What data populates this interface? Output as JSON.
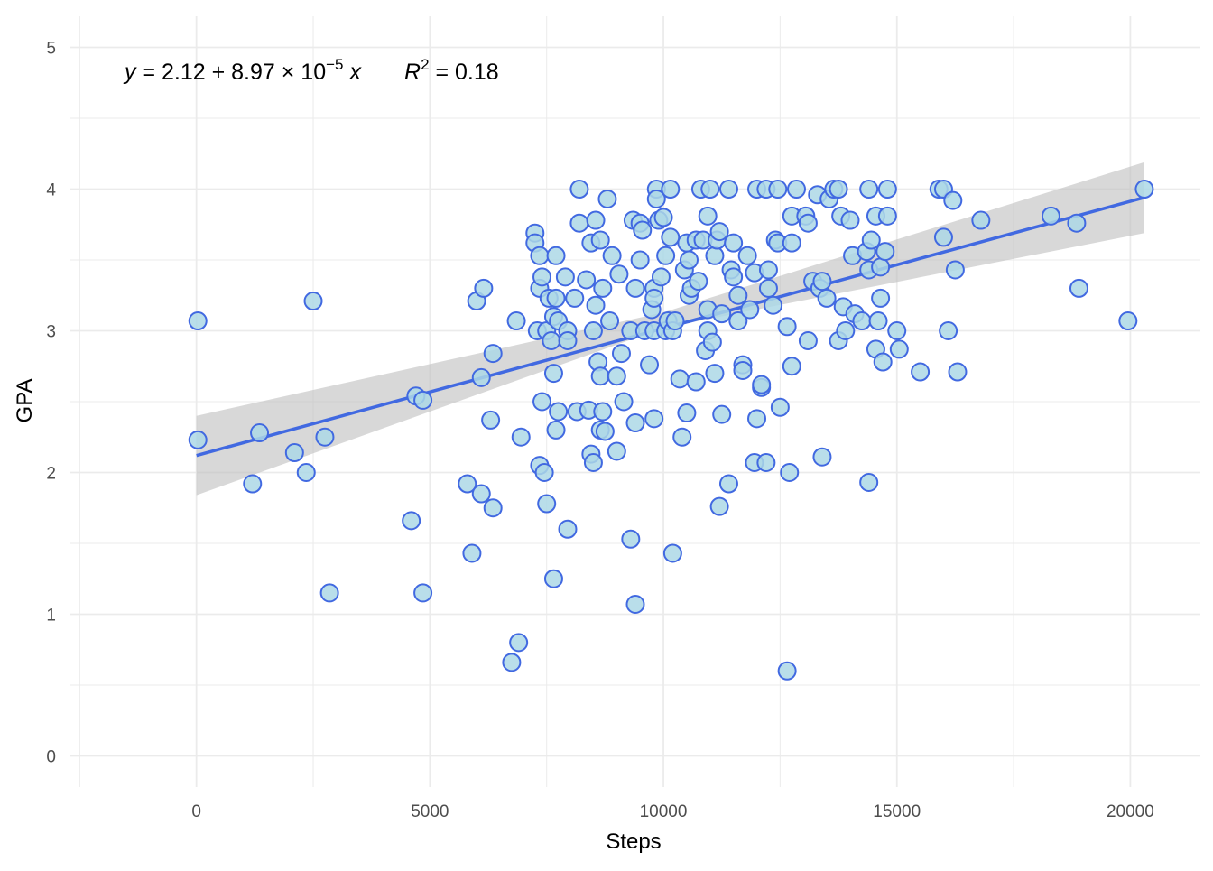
{
  "chart_data": {
    "type": "scatter",
    "xlabel": "Steps",
    "ylabel": "GPA",
    "xlim": [
      -2700,
      21500
    ],
    "ylim": [
      -0.22,
      5.22
    ],
    "x_ticks": [
      0,
      5000,
      10000,
      15000,
      20000
    ],
    "y_ticks": [
      0,
      1,
      2,
      3,
      4,
      5
    ],
    "x_tick_labels": [
      "0",
      "5000",
      "10000",
      "15000",
      "20000"
    ],
    "y_tick_labels": [
      "0",
      "1",
      "2",
      "3",
      "4",
      "5"
    ],
    "grid": true,
    "theme": "minimal",
    "annotation": {
      "y_var": "y",
      "eq_mid": " = 2.12 + 8.97 × 10",
      "exponent": "−5",
      "x_var": " x",
      "r_var": "R",
      "r_exp": "2",
      "r_val": " = 0.18"
    },
    "regression": {
      "intercept": 2.12,
      "slope": 8.97e-05,
      "x_range": [
        0,
        20300
      ],
      "ci_lower": [
        [
          0,
          1.84
        ],
        [
          10000,
          3.02
        ],
        [
          20300,
          3.69
        ]
      ],
      "ci_upper": [
        [
          0,
          2.4
        ],
        [
          10000,
          3.13
        ],
        [
          20300,
          4.19
        ]
      ]
    },
    "colors": {
      "point_fill": "#add8e6",
      "point_stroke": "#4169e1",
      "line": "#4169e1",
      "ci_band": "#bebebe",
      "grid": "#ebebeb"
    },
    "points": [
      [
        30,
        3.07
      ],
      [
        30,
        2.23
      ],
      [
        1200,
        1.92
      ],
      [
        1350,
        2.28
      ],
      [
        2100,
        2.14
      ],
      [
        2350,
        2.0
      ],
      [
        2500,
        3.21
      ],
      [
        2750,
        2.25
      ],
      [
        2850,
        1.15
      ],
      [
        4600,
        1.66
      ],
      [
        4700,
        2.54
      ],
      [
        4850,
        2.51
      ],
      [
        4850,
        1.15
      ],
      [
        5800,
        1.92
      ],
      [
        5900,
        1.43
      ],
      [
        6000,
        3.21
      ],
      [
        6100,
        2.67
      ],
      [
        6100,
        1.85
      ],
      [
        6150,
        3.3
      ],
      [
        6300,
        2.37
      ],
      [
        6350,
        2.84
      ],
      [
        6350,
        1.75
      ],
      [
        6750,
        0.66
      ],
      [
        6850,
        3.07
      ],
      [
        6900,
        0.8
      ],
      [
        6950,
        2.25
      ],
      [
        7250,
        3.69
      ],
      [
        7250,
        3.62
      ],
      [
        7300,
        3.0
      ],
      [
        7350,
        3.53
      ],
      [
        7350,
        3.3
      ],
      [
        7350,
        2.05
      ],
      [
        7400,
        3.38
      ],
      [
        7400,
        2.5
      ],
      [
        7450,
        2.0
      ],
      [
        7500,
        3.0
      ],
      [
        7500,
        1.78
      ],
      [
        7550,
        3.23
      ],
      [
        7600,
        2.93
      ],
      [
        7650,
        3.1
      ],
      [
        7650,
        2.7
      ],
      [
        7650,
        1.25
      ],
      [
        7700,
        3.53
      ],
      [
        7700,
        3.23
      ],
      [
        7700,
        2.3
      ],
      [
        7750,
        3.07
      ],
      [
        7750,
        2.43
      ],
      [
        7900,
        3.38
      ],
      [
        7950,
        3.0
      ],
      [
        7950,
        2.93
      ],
      [
        7950,
        1.6
      ],
      [
        8100,
        3.23
      ],
      [
        8150,
        2.43
      ],
      [
        8200,
        4.0
      ],
      [
        8200,
        3.76
      ],
      [
        8350,
        3.36
      ],
      [
        8400,
        2.44
      ],
      [
        8450,
        3.62
      ],
      [
        8450,
        2.13
      ],
      [
        8500,
        3.0
      ],
      [
        8500,
        2.07
      ],
      [
        8550,
        3.78
      ],
      [
        8550,
        3.18
      ],
      [
        8600,
        2.78
      ],
      [
        8650,
        3.64
      ],
      [
        8650,
        2.68
      ],
      [
        8650,
        2.3
      ],
      [
        8700,
        3.3
      ],
      [
        8700,
        2.43
      ],
      [
        8750,
        2.29
      ],
      [
        8800,
        3.93
      ],
      [
        8850,
        3.07
      ],
      [
        8900,
        3.53
      ],
      [
        9000,
        2.68
      ],
      [
        9000,
        2.15
      ],
      [
        9050,
        3.4
      ],
      [
        9100,
        2.84
      ],
      [
        9150,
        2.5
      ],
      [
        9300,
        3.0
      ],
      [
        9300,
        1.53
      ],
      [
        9350,
        3.78
      ],
      [
        9400,
        3.3
      ],
      [
        9400,
        2.35
      ],
      [
        9400,
        1.07
      ],
      [
        9500,
        3.76
      ],
      [
        9500,
        3.5
      ],
      [
        9550,
        3.71
      ],
      [
        9600,
        3.0
      ],
      [
        9700,
        2.76
      ],
      [
        9750,
        3.15
      ],
      [
        9800,
        3.3
      ],
      [
        9800,
        3.23
      ],
      [
        9800,
        3.0
      ],
      [
        9800,
        2.38
      ],
      [
        9850,
        4.0
      ],
      [
        9850,
        3.93
      ],
      [
        9900,
        3.78
      ],
      [
        9950,
        3.38
      ],
      [
        10000,
        3.8
      ],
      [
        10050,
        3.53
      ],
      [
        10050,
        3.0
      ],
      [
        10100,
        3.07
      ],
      [
        10150,
        4.0
      ],
      [
        10150,
        3.66
      ],
      [
        10200,
        3.0
      ],
      [
        10250,
        3.07
      ],
      [
        10200,
        1.43
      ],
      [
        10350,
        2.66
      ],
      [
        10400,
        2.25
      ],
      [
        10450,
        3.43
      ],
      [
        10500,
        3.62
      ],
      [
        10500,
        2.42
      ],
      [
        10550,
        3.5
      ],
      [
        10550,
        3.25
      ],
      [
        10600,
        3.3
      ],
      [
        10700,
        3.64
      ],
      [
        10700,
        2.64
      ],
      [
        10750,
        3.35
      ],
      [
        10800,
        4.0
      ],
      [
        10850,
        3.64
      ],
      [
        10900,
        2.86
      ],
      [
        10950,
        3.81
      ],
      [
        10950,
        3.15
      ],
      [
        10950,
        3.0
      ],
      [
        11000,
        4.0
      ],
      [
        11050,
        2.92
      ],
      [
        11100,
        3.53
      ],
      [
        11100,
        2.7
      ],
      [
        11150,
        3.64
      ],
      [
        11200,
        3.7
      ],
      [
        11200,
        1.76
      ],
      [
        11250,
        3.12
      ],
      [
        11250,
        2.41
      ],
      [
        11400,
        4.0
      ],
      [
        11400,
        1.92
      ],
      [
        11450,
        3.43
      ],
      [
        11500,
        3.62
      ],
      [
        11500,
        3.38
      ],
      [
        11600,
        3.25
      ],
      [
        11600,
        3.07
      ],
      [
        11700,
        2.76
      ],
      [
        11700,
        2.72
      ],
      [
        11800,
        3.53
      ],
      [
        11850,
        3.15
      ],
      [
        11950,
        3.41
      ],
      [
        11950,
        2.07
      ],
      [
        12000,
        4.0
      ],
      [
        12000,
        2.38
      ],
      [
        12100,
        2.6
      ],
      [
        12100,
        2.62
      ],
      [
        12200,
        4.0
      ],
      [
        12200,
        2.07
      ],
      [
        12250,
        3.43
      ],
      [
        12250,
        3.3
      ],
      [
        12350,
        3.18
      ],
      [
        12400,
        3.64
      ],
      [
        12450,
        4.0
      ],
      [
        12450,
        3.62
      ],
      [
        12500,
        2.46
      ],
      [
        12650,
        3.03
      ],
      [
        12650,
        0.6
      ],
      [
        12700,
        2.0
      ],
      [
        12750,
        3.81
      ],
      [
        12750,
        3.62
      ],
      [
        12750,
        2.75
      ],
      [
        12850,
        4.0
      ],
      [
        13050,
        3.81
      ],
      [
        13100,
        3.76
      ],
      [
        13100,
        2.93
      ],
      [
        13200,
        3.35
      ],
      [
        13300,
        3.96
      ],
      [
        13350,
        3.3
      ],
      [
        13400,
        3.35
      ],
      [
        13400,
        2.11
      ],
      [
        13500,
        3.23
      ],
      [
        13550,
        3.93
      ],
      [
        13650,
        4.0
      ],
      [
        13750,
        4.0
      ],
      [
        13750,
        2.93
      ],
      [
        13800,
        3.81
      ],
      [
        13850,
        3.17
      ],
      [
        13900,
        3.0
      ],
      [
        14000,
        3.78
      ],
      [
        14050,
        3.53
      ],
      [
        14100,
        3.12
      ],
      [
        14250,
        3.07
      ],
      [
        14350,
        3.56
      ],
      [
        14400,
        4.0
      ],
      [
        14400,
        3.43
      ],
      [
        14400,
        1.93
      ],
      [
        14450,
        3.64
      ],
      [
        14550,
        3.81
      ],
      [
        14550,
        2.87
      ],
      [
        14600,
        3.07
      ],
      [
        14650,
        3.45
      ],
      [
        14650,
        3.23
      ],
      [
        14700,
        2.78
      ],
      [
        14750,
        3.56
      ],
      [
        14800,
        4.0
      ],
      [
        14800,
        3.81
      ],
      [
        15000,
        3.0
      ],
      [
        15050,
        2.87
      ],
      [
        15500,
        2.71
      ],
      [
        15900,
        4.0
      ],
      [
        16000,
        4.0
      ],
      [
        16000,
        3.66
      ],
      [
        16100,
        3.0
      ],
      [
        16200,
        3.92
      ],
      [
        16250,
        3.43
      ],
      [
        16300,
        2.71
      ],
      [
        16800,
        3.78
      ],
      [
        18300,
        3.81
      ],
      [
        18850,
        3.76
      ],
      [
        18900,
        3.3
      ],
      [
        19950,
        3.07
      ],
      [
        20300,
        4.0
      ]
    ]
  }
}
